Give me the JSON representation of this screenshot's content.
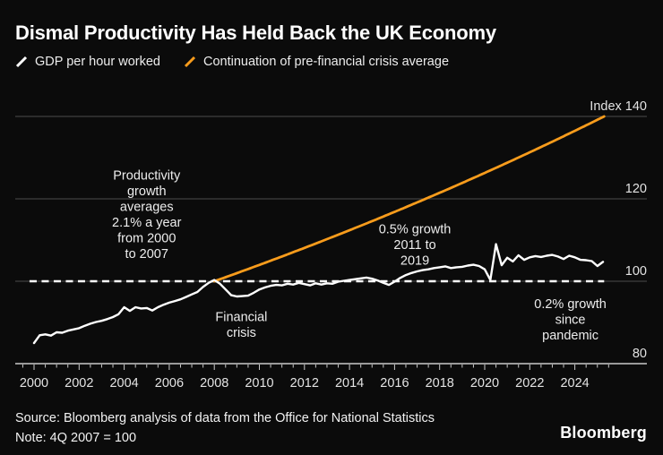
{
  "header": {
    "title": "Dismal Productivity Has Held Back the UK Economy",
    "legend": [
      {
        "label": "GDP per hour worked",
        "color": "#ffffff",
        "icon": "white-slash-icon"
      },
      {
        "label": "Continuation of pre-financial crisis average",
        "color": "#f89c1c",
        "icon": "orange-slash-icon"
      }
    ]
  },
  "footer": {
    "source": "Source: Bloomberg analysis of data from the Office for National Statistics",
    "note": "Note: 4Q 2007 = 100",
    "brand": "Bloomberg"
  },
  "colors": {
    "background": "#0b0b0b",
    "gridline": "#4d4d4d",
    "axis": "#c9c9c9",
    "axis_label": "#e3e3e3",
    "annotation": "#ededed",
    "gdp_line": "#ffffff",
    "trend_line": "#f89c1c",
    "reference_line": "#ffffff"
  },
  "chart_data": {
    "type": "line",
    "title": "Dismal Productivity Has Held Back the UK Economy",
    "xlabel": "",
    "ylabel": "Index",
    "x_range": [
      2000,
      2025.3
    ],
    "ylim": [
      80,
      140
    ],
    "grid": "horizontal",
    "legend_position": "top-left",
    "y_axis": {
      "ticks": [
        {
          "value": 140,
          "label": "Index 140"
        },
        {
          "value": 120,
          "label": "120"
        },
        {
          "value": 100,
          "label": "100"
        },
        {
          "value": 80,
          "label": "80"
        }
      ]
    },
    "x_axis": {
      "major_tick_years": [
        2000,
        2002,
        2004,
        2006,
        2008,
        2010,
        2012,
        2014,
        2016,
        2018,
        2020,
        2022,
        2024
      ],
      "tick_labels": [
        "2000",
        "2002",
        "2004",
        "2006",
        "2008",
        "2010",
        "2012",
        "2014",
        "2016",
        "2018",
        "2020",
        "2022",
        "2024"
      ],
      "minor_tick_step": 0.5,
      "minor_tick_start": 1999.5,
      "minor_tick_end": 2025.5
    },
    "reference_line": {
      "value": 100,
      "style": "dashed",
      "x_start": 1999.8,
      "x_end": 2025.3
    },
    "series": [
      {
        "name": "GDP per hour worked",
        "type": "quarterly",
        "x_start": 2000.0,
        "x_step": 0.25,
        "values": [
          85.0,
          86.9,
          87.1,
          86.8,
          87.6,
          87.5,
          88.0,
          88.3,
          88.6,
          89.2,
          89.7,
          90.1,
          90.4,
          90.8,
          91.3,
          92.0,
          93.7,
          92.8,
          93.7,
          93.4,
          93.5,
          92.9,
          93.7,
          94.3,
          94.8,
          95.2,
          95.6,
          96.2,
          96.8,
          97.4,
          98.6,
          99.6,
          100.3,
          99.4,
          98.0,
          96.6,
          96.3,
          96.4,
          96.5,
          97.2,
          98.0,
          98.5,
          98.9,
          99.1,
          99.0,
          99.4,
          99.2,
          99.6,
          99.3,
          99.0,
          99.5,
          99.2,
          99.5,
          99.4,
          99.9,
          100.1,
          100.3,
          100.5,
          100.7,
          100.9,
          100.6,
          100.2,
          99.6,
          99.1,
          99.9,
          100.8,
          101.5,
          102.0,
          102.4,
          102.7,
          102.9,
          103.2,
          103.4,
          103.6,
          103.2,
          103.4,
          103.5,
          103.8,
          104.0,
          103.7,
          102.9,
          100.3,
          109.0,
          103.9,
          105.7,
          104.8,
          106.3,
          105.2,
          105.8,
          106.1,
          105.9,
          106.2,
          106.4,
          106.0,
          105.4,
          106.2,
          105.8,
          105.2,
          105.1,
          104.9,
          103.7,
          104.7
        ]
      },
      {
        "name": "Continuation of pre-financial crisis average",
        "type": "exponential-trend",
        "x0": 2008.0,
        "v0": 100,
        "x1": 2025.3,
        "v1": 140,
        "growth_note": "2.1% a year pre-crisis average extended"
      }
    ],
    "annotations": [
      {
        "id": "productivity-growth",
        "lines": [
          "Productivity",
          "growth",
          "averages",
          "2.1% a year",
          "from 2000",
          "to 2007"
        ],
        "year": 2005.0,
        "index": 127.5
      },
      {
        "id": "growth-2011-2019",
        "lines": [
          "0.5% growth",
          "2011 to",
          "2019"
        ],
        "year": 2016.9,
        "index": 114.5
      },
      {
        "id": "financial-crisis",
        "lines": [
          "Financial",
          "crisis"
        ],
        "year": 2009.2,
        "index": 93.2
      },
      {
        "id": "growth-since-pandemic",
        "lines": [
          "0.2% growth",
          "since",
          "pandemic"
        ],
        "year": 2023.8,
        "index": 96.3
      }
    ]
  }
}
